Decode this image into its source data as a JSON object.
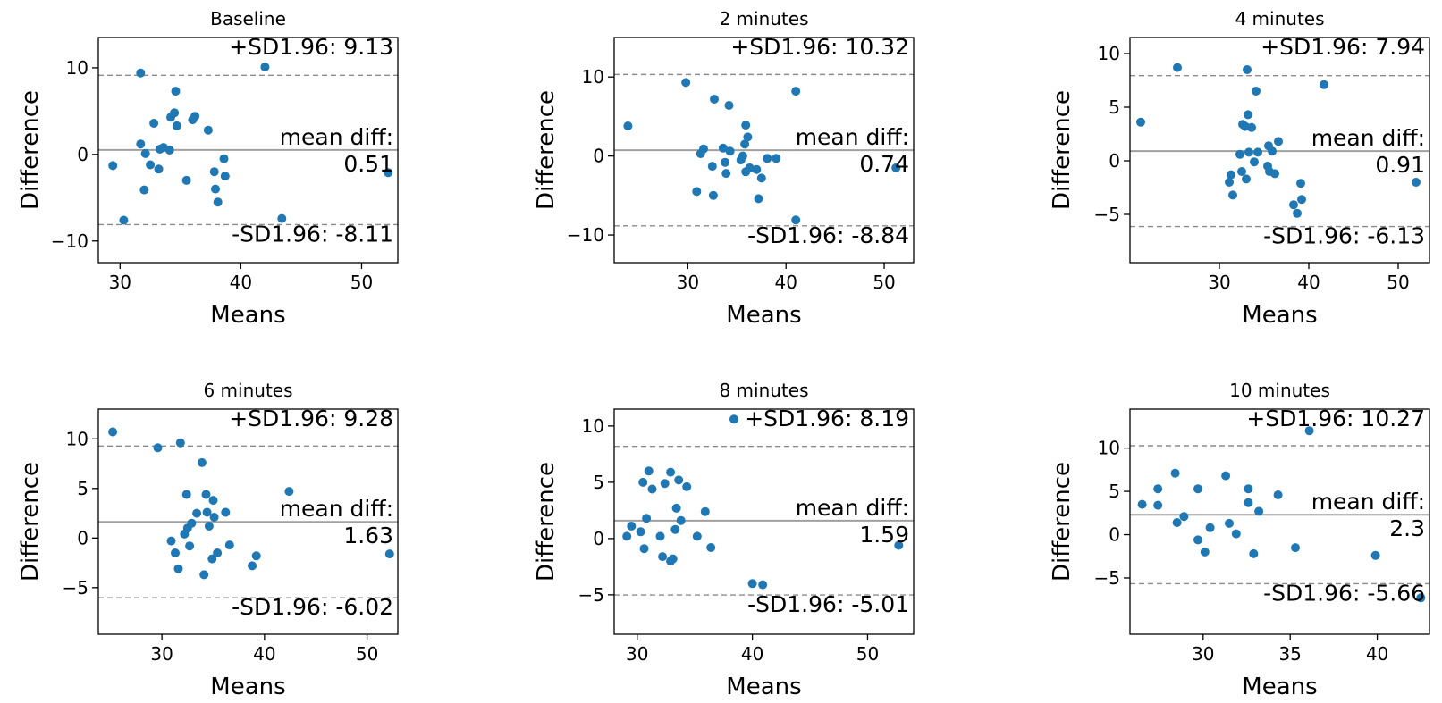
{
  "chart_data": [
    {
      "type": "scatter",
      "title": "Baseline",
      "xlabel": "Means",
      "ylabel": "Difference",
      "xlim": [
        28.2,
        53.0
      ],
      "ylim": [
        -12.5,
        13.5
      ],
      "xticks": [
        30,
        40,
        50
      ],
      "yticks": [
        -10,
        0,
        10
      ],
      "mean_diff": 0.51,
      "upper_sd": 9.13,
      "lower_sd": -8.11,
      "upper_label": "+SD1.96: 9.13",
      "mean_label_1": "mean diff:",
      "mean_label_2": "0.51",
      "lower_label": "-SD1.96: -8.11",
      "points": [
        [
          29.4,
          -1.3
        ],
        [
          30.3,
          -7.6
        ],
        [
          31.7,
          9.4
        ],
        [
          31.7,
          1.2
        ],
        [
          32.0,
          -4.1
        ],
        [
          32.1,
          0.1
        ],
        [
          32.5,
          -1.2
        ],
        [
          32.8,
          3.6
        ],
        [
          33.2,
          -1.7
        ],
        [
          33.3,
          0.6
        ],
        [
          33.6,
          0.8
        ],
        [
          34.1,
          0.5
        ],
        [
          34.2,
          4.3
        ],
        [
          34.5,
          4.8
        ],
        [
          34.6,
          7.3
        ],
        [
          34.7,
          3.3
        ],
        [
          35.5,
          -3.0
        ],
        [
          36.0,
          4.0
        ],
        [
          36.2,
          4.4
        ],
        [
          37.3,
          2.8
        ],
        [
          37.8,
          -2.0
        ],
        [
          37.9,
          -4.0
        ],
        [
          38.1,
          -5.5
        ],
        [
          38.6,
          -0.5
        ],
        [
          38.7,
          -2.5
        ],
        [
          42.0,
          10.1
        ],
        [
          43.4,
          -7.4
        ],
        [
          52.2,
          -2.1
        ]
      ]
    },
    {
      "type": "scatter",
      "title": "2 minutes",
      "xlabel": "Means",
      "ylabel": "Difference",
      "xlim": [
        22.5,
        53.0
      ],
      "ylim": [
        -13.5,
        15.0
      ],
      "xticks": [
        30,
        40,
        50
      ],
      "yticks": [
        -10,
        0,
        10
      ],
      "mean_diff": 0.74,
      "upper_sd": 10.32,
      "lower_sd": -8.84,
      "upper_label": "+SD1.96: 10.32",
      "mean_label_1": "mean diff:",
      "mean_label_2": "0.74",
      "lower_label": "-SD1.96: -8.84",
      "points": [
        [
          23.9,
          3.8
        ],
        [
          29.8,
          9.3
        ],
        [
          30.9,
          -4.5
        ],
        [
          31.3,
          0.3
        ],
        [
          31.6,
          0.9
        ],
        [
          32.5,
          -1.3
        ],
        [
          32.6,
          -5.0
        ],
        [
          32.7,
          7.2
        ],
        [
          33.6,
          1.0
        ],
        [
          33.8,
          -0.8
        ],
        [
          33.9,
          -2.2
        ],
        [
          34.2,
          6.4
        ],
        [
          34.3,
          0.6
        ],
        [
          35.4,
          -0.5
        ],
        [
          35.6,
          0.0
        ],
        [
          35.8,
          1.5
        ],
        [
          35.9,
          -2.0
        ],
        [
          35.9,
          3.9
        ],
        [
          36.1,
          2.4
        ],
        [
          36.3,
          -1.5
        ],
        [
          37.0,
          -1.7
        ],
        [
          37.2,
          -5.4
        ],
        [
          37.5,
          -2.8
        ],
        [
          38.1,
          -0.3
        ],
        [
          39.0,
          -0.3
        ],
        [
          41.0,
          8.2
        ],
        [
          41.0,
          -8.1
        ],
        [
          51.2,
          -1.5
        ]
      ]
    },
    {
      "type": "scatter",
      "title": "4 minutes",
      "xlabel": "Means",
      "ylabel": "Difference",
      "xlim": [
        20.0,
        53.5
      ],
      "ylim": [
        -9.5,
        11.5
      ],
      "xticks": [
        30,
        40,
        50
      ],
      "yticks": [
        -5,
        0,
        5,
        10
      ],
      "mean_diff": 0.91,
      "upper_sd": 7.94,
      "lower_sd": -6.13,
      "upper_label": "+SD1.96: 7.94",
      "mean_label_1": "mean diff:",
      "mean_label_2": "0.91",
      "lower_label": "-SD1.96: -6.13",
      "points": [
        [
          21.2,
          3.6
        ],
        [
          25.3,
          8.7
        ],
        [
          31.1,
          -2.0
        ],
        [
          31.3,
          -1.3
        ],
        [
          31.5,
          -3.2
        ],
        [
          32.3,
          0.6
        ],
        [
          32.5,
          -1.0
        ],
        [
          32.6,
          3.4
        ],
        [
          32.9,
          3.2
        ],
        [
          33.0,
          -1.7
        ],
        [
          33.1,
          8.5
        ],
        [
          33.2,
          4.3
        ],
        [
          33.3,
          0.8
        ],
        [
          33.6,
          3.1
        ],
        [
          33.9,
          -0.1
        ],
        [
          34.1,
          6.5
        ],
        [
          34.3,
          0.8
        ],
        [
          35.4,
          -0.5
        ],
        [
          35.5,
          1.4
        ],
        [
          35.6,
          -1.0
        ],
        [
          35.9,
          0.9
        ],
        [
          36.2,
          -1.2
        ],
        [
          36.6,
          1.8
        ],
        [
          38.3,
          -4.1
        ],
        [
          38.7,
          -4.9
        ],
        [
          39.1,
          -2.1
        ],
        [
          39.2,
          -3.6
        ],
        [
          41.7,
          7.1
        ],
        [
          52.0,
          -2.0
        ]
      ]
    },
    {
      "type": "scatter",
      "title": "6 minutes",
      "xlabel": "Means",
      "ylabel": "Difference",
      "xlim": [
        23.8,
        53.0
      ],
      "ylim": [
        -9.7,
        13.0
      ],
      "xticks": [
        30,
        40,
        50
      ],
      "yticks": [
        -5,
        0,
        5,
        10
      ],
      "mean_diff": 1.63,
      "upper_sd": 9.28,
      "lower_sd": -6.02,
      "upper_label": "+SD1.96: 9.28",
      "mean_label_1": "mean diff:",
      "mean_label_2": "1.63",
      "lower_label": "-SD1.96: -6.02",
      "points": [
        [
          25.2,
          10.7
        ],
        [
          29.6,
          9.1
        ],
        [
          30.9,
          -0.3
        ],
        [
          31.3,
          -1.5
        ],
        [
          31.6,
          -3.1
        ],
        [
          31.8,
          9.6
        ],
        [
          32.2,
          0.4
        ],
        [
          32.4,
          4.4
        ],
        [
          32.5,
          1.0
        ],
        [
          32.7,
          -0.8
        ],
        [
          32.9,
          1.5
        ],
        [
          33.4,
          2.5
        ],
        [
          33.9,
          7.6
        ],
        [
          34.1,
          -3.7
        ],
        [
          34.3,
          4.4
        ],
        [
          34.4,
          2.6
        ],
        [
          34.6,
          1.2
        ],
        [
          34.9,
          -2.1
        ],
        [
          35.0,
          3.8
        ],
        [
          35.1,
          2.1
        ],
        [
          35.4,
          -1.5
        ],
        [
          36.2,
          2.6
        ],
        [
          36.6,
          -0.7
        ],
        [
          38.8,
          -2.8
        ],
        [
          39.2,
          -1.8
        ],
        [
          42.4,
          4.7
        ],
        [
          52.2,
          -1.6
        ]
      ]
    },
    {
      "type": "scatter",
      "title": "8 minutes",
      "xlabel": "Means",
      "ylabel": "Difference",
      "xlim": [
        28.0,
        54.0
      ],
      "ylim": [
        -8.5,
        11.5
      ],
      "xticks": [
        30,
        40,
        50
      ],
      "yticks": [
        -5,
        0,
        5,
        10
      ],
      "mean_diff": 1.59,
      "upper_sd": 8.19,
      "lower_sd": -5.01,
      "upper_label": "+SD1.96: 8.19",
      "mean_label_1": "mean diff:",
      "mean_label_2": "1.59",
      "lower_label": "-SD1.96: -5.01",
      "points": [
        [
          29.1,
          0.2
        ],
        [
          29.5,
          1.1
        ],
        [
          30.3,
          0.6
        ],
        [
          30.5,
          5.0
        ],
        [
          30.6,
          -0.9
        ],
        [
          30.8,
          1.8
        ],
        [
          31.0,
          6.0
        ],
        [
          31.3,
          4.4
        ],
        [
          32.0,
          0.2
        ],
        [
          32.2,
          -1.6
        ],
        [
          32.4,
          4.9
        ],
        [
          32.9,
          5.9
        ],
        [
          32.9,
          -2.0
        ],
        [
          33.1,
          -1.8
        ],
        [
          33.4,
          2.7
        ],
        [
          33.3,
          0.8
        ],
        [
          33.6,
          5.2
        ],
        [
          33.8,
          1.6
        ],
        [
          34.3,
          4.6
        ],
        [
          35.2,
          0.2
        ],
        [
          35.9,
          2.4
        ],
        [
          36.4,
          -0.8
        ],
        [
          38.4,
          10.6
        ],
        [
          40.0,
          -4.0
        ],
        [
          40.9,
          -4.1
        ],
        [
          52.7,
          -0.6
        ]
      ]
    },
    {
      "type": "scatter",
      "title": "10 minutes",
      "xlabel": "Means",
      "ylabel": "Difference",
      "xlim": [
        25.8,
        43.0
      ],
      "ylim": [
        -11.5,
        14.5
      ],
      "xticks": [
        30,
        35,
        40
      ],
      "yticks": [
        -5,
        0,
        5,
        10
      ],
      "mean_diff": 2.3,
      "upper_sd": 10.27,
      "lower_sd": -5.66,
      "upper_label": "+SD1.96: 10.27",
      "mean_label_1": "mean diff:",
      "mean_label_2": "2.3",
      "lower_label": "-SD1.96: -5.66",
      "points": [
        [
          26.5,
          3.5
        ],
        [
          27.4,
          5.3
        ],
        [
          27.4,
          3.4
        ],
        [
          28.4,
          7.1
        ],
        [
          28.5,
          1.4
        ],
        [
          28.9,
          2.1
        ],
        [
          29.7,
          5.3
        ],
        [
          29.7,
          -0.6
        ],
        [
          30.1,
          -2.0
        ],
        [
          30.4,
          0.8
        ],
        [
          31.3,
          6.8
        ],
        [
          31.5,
          1.3
        ],
        [
          31.9,
          0.1
        ],
        [
          32.6,
          5.3
        ],
        [
          32.6,
          3.7
        ],
        [
          32.9,
          -2.2
        ],
        [
          33.2,
          2.7
        ],
        [
          34.3,
          4.6
        ],
        [
          35.3,
          -1.5
        ],
        [
          36.1,
          12.0
        ],
        [
          39.9,
          -2.4
        ],
        [
          42.5,
          -7.3
        ]
      ]
    }
  ]
}
